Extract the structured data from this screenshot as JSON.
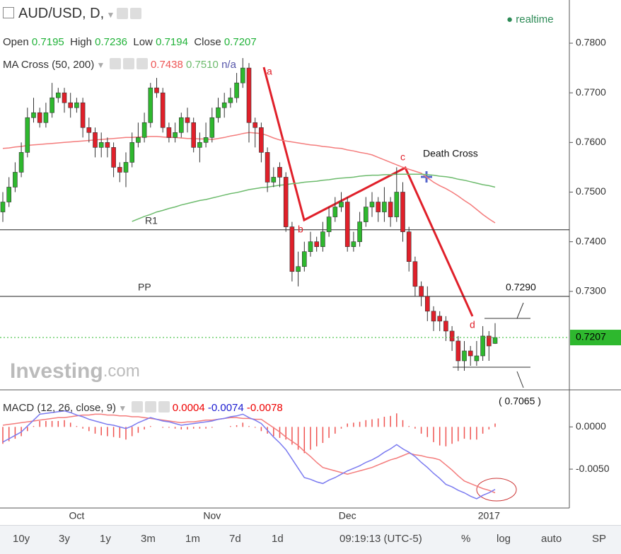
{
  "toolbar": {
    "symbol": "AUD/USD, D,",
    "status": "realtime"
  },
  "legend": {
    "ohlc": [
      {
        "label": "Open",
        "value": "0.7195"
      },
      {
        "label": "High",
        "value": "0.7236"
      },
      {
        "label": "Low",
        "value": "0.7194"
      },
      {
        "label": "Close",
        "value": "0.7207"
      }
    ],
    "ma_label": "MA Cross (50, 200)",
    "ma_values": [
      "0.7438",
      "0.7510",
      "n/a"
    ]
  },
  "watermark": [
    "Investing",
    ".com"
  ],
  "chart_data": [
    {
      "type": "candlestick",
      "categories": [
        null,
        null,
        null,
        null,
        null,
        null,
        null,
        null,
        null,
        null,
        null,
        null,
        "Oct",
        null,
        null,
        null,
        null,
        null,
        null,
        null,
        null,
        null,
        null,
        null,
        null,
        null,
        null,
        null,
        null,
        null,
        null,
        null,
        null,
        null,
        "Nov",
        null,
        null,
        null,
        null,
        null,
        null,
        null,
        null,
        null,
        null,
        null,
        null,
        null,
        null,
        null,
        null,
        null,
        null,
        null,
        null,
        null,
        "Dec",
        null,
        null,
        null,
        null,
        null,
        null,
        null,
        null,
        null,
        null,
        null,
        null,
        null,
        null,
        null,
        null,
        null,
        null,
        null,
        null,
        null,
        null,
        "2017",
        null
      ],
      "open": [
        0.746,
        0.748,
        0.751,
        0.754,
        0.758,
        0.765,
        0.766,
        0.764,
        0.766,
        0.769,
        0.77,
        0.768,
        0.767,
        0.768,
        0.763,
        0.762,
        0.759,
        0.76,
        0.759,
        0.755,
        0.754,
        0.756,
        0.76,
        0.761,
        0.764,
        0.771,
        0.77,
        0.763,
        0.761,
        0.762,
        0.765,
        0.764,
        0.759,
        0.76,
        0.761,
        0.765,
        0.767,
        0.768,
        0.769,
        0.772,
        0.775,
        0.764,
        0.763,
        0.758,
        0.752,
        0.755,
        0.753,
        0.743,
        0.734,
        0.735,
        0.738,
        0.74,
        0.739,
        0.742,
        0.745,
        0.747,
        0.748,
        0.739,
        0.74,
        0.744,
        0.747,
        0.748,
        0.746,
        0.748,
        0.745,
        0.75,
        0.742,
        0.736,
        0.731,
        0.729,
        0.726,
        0.725,
        0.724,
        0.722,
        0.72,
        0.716,
        0.718,
        0.716,
        0.717,
        0.721,
        0.7195
      ],
      "high": [
        0.75,
        0.753,
        0.756,
        0.76,
        0.767,
        0.769,
        0.767,
        0.768,
        0.772,
        0.771,
        0.771,
        0.77,
        0.769,
        0.769,
        0.765,
        0.763,
        0.762,
        0.761,
        0.76,
        0.756,
        0.758,
        0.762,
        0.764,
        0.766,
        0.772,
        0.773,
        0.771,
        0.764,
        0.764,
        0.766,
        0.767,
        0.765,
        0.762,
        0.764,
        0.767,
        0.769,
        0.77,
        0.771,
        0.774,
        0.777,
        0.776,
        0.765,
        0.764,
        0.759,
        0.755,
        0.756,
        0.754,
        0.744,
        0.738,
        0.74,
        0.742,
        0.741,
        0.744,
        0.747,
        0.749,
        0.75,
        0.749,
        0.742,
        0.746,
        0.749,
        0.75,
        0.749,
        0.751,
        0.749,
        0.755,
        0.752,
        0.743,
        0.737,
        0.732,
        0.731,
        0.727,
        0.726,
        0.725,
        0.723,
        0.721,
        0.72,
        0.719,
        0.72,
        0.723,
        0.722,
        0.7236
      ],
      "low": [
        0.744,
        0.747,
        0.75,
        0.753,
        0.757,
        0.764,
        0.763,
        0.763,
        0.765,
        0.768,
        0.766,
        0.765,
        0.766,
        0.761,
        0.76,
        0.757,
        0.757,
        0.757,
        0.753,
        0.752,
        0.751,
        0.755,
        0.759,
        0.76,
        0.763,
        0.769,
        0.762,
        0.76,
        0.76,
        0.761,
        0.762,
        0.758,
        0.756,
        0.759,
        0.76,
        0.764,
        0.765,
        0.767,
        0.768,
        0.771,
        0.76,
        0.759,
        0.756,
        0.75,
        0.751,
        0.751,
        0.742,
        0.732,
        0.731,
        0.734,
        0.737,
        0.738,
        0.738,
        0.741,
        0.744,
        0.746,
        0.738,
        0.738,
        0.739,
        0.743,
        0.745,
        0.744,
        0.744,
        0.743,
        0.744,
        0.74,
        0.734,
        0.729,
        0.727,
        0.724,
        0.722,
        0.722,
        0.72,
        0.718,
        0.714,
        0.714,
        0.715,
        0.715,
        0.716,
        0.716,
        0.7194
      ],
      "close": [
        0.748,
        0.751,
        0.754,
        0.758,
        0.765,
        0.766,
        0.764,
        0.766,
        0.769,
        0.77,
        0.768,
        0.767,
        0.768,
        0.763,
        0.762,
        0.759,
        0.76,
        0.759,
        0.755,
        0.754,
        0.756,
        0.76,
        0.761,
        0.764,
        0.771,
        0.77,
        0.763,
        0.761,
        0.762,
        0.765,
        0.764,
        0.759,
        0.76,
        0.761,
        0.765,
        0.767,
        0.768,
        0.769,
        0.772,
        0.775,
        0.764,
        0.763,
        0.758,
        0.752,
        0.753,
        0.753,
        0.743,
        0.734,
        0.735,
        0.738,
        0.74,
        0.739,
        0.742,
        0.745,
        0.747,
        0.748,
        0.739,
        0.74,
        0.744,
        0.747,
        0.748,
        0.746,
        0.748,
        0.745,
        0.75,
        0.742,
        0.736,
        0.731,
        0.729,
        0.726,
        0.724,
        0.724,
        0.722,
        0.72,
        0.716,
        0.718,
        0.717,
        0.717,
        0.721,
        0.719,
        0.7207
      ],
      "up_color": "#2eb82e",
      "down_color": "#e0202a",
      "ma_lines": [
        {
          "color": "#f47c7c",
          "values": [
            0.7588,
            0.7589,
            0.7591,
            0.7592,
            0.7594,
            0.7595,
            0.7596,
            0.7597,
            0.7598,
            0.7599,
            0.76,
            0.7601,
            0.7602,
            0.7603,
            0.7604,
            0.7605,
            0.7606,
            0.7607,
            0.7608,
            0.7609,
            0.761,
            0.761,
            0.7611,
            0.7611,
            0.7612,
            0.7612,
            0.7611,
            0.761,
            0.761,
            0.7609,
            0.7608,
            0.7608,
            0.7607,
            0.7607,
            0.7606,
            0.7608,
            0.761,
            0.7613,
            0.7615,
            0.7618,
            0.762,
            0.7619,
            0.7618,
            0.7614,
            0.7609,
            0.7605,
            0.7603,
            0.7601,
            0.7599,
            0.7597,
            0.7595,
            0.7594,
            0.7592,
            0.7591,
            0.7589,
            0.7588,
            0.7585,
            0.7583,
            0.758,
            0.7578,
            0.7575,
            0.757,
            0.7565,
            0.756,
            0.7555,
            0.755,
            0.7546,
            0.7542,
            0.7538,
            0.7529,
            0.752,
            0.7513,
            0.7507,
            0.75,
            0.7492,
            0.7483,
            0.7475,
            0.7465,
            0.7455,
            0.7446,
            0.7438
          ]
        },
        {
          "color": "#6dbb6d",
          "values": [
            null,
            null,
            null,
            null,
            null,
            null,
            null,
            null,
            null,
            null,
            null,
            null,
            null,
            null,
            null,
            null,
            null,
            null,
            null,
            null,
            null,
            0.7441,
            0.7446,
            0.7451,
            0.7455,
            0.746,
            0.7463,
            0.7467,
            0.747,
            0.7474,
            0.7477,
            0.748,
            0.7483,
            0.7485,
            0.7488,
            0.7491,
            0.7494,
            0.7497,
            0.7499,
            0.7502,
            0.7505,
            0.7507,
            0.7509,
            0.751,
            0.7512,
            0.7514,
            0.7515,
            0.7517,
            0.7518,
            0.752,
            0.7521,
            0.7522,
            0.7524,
            0.7525,
            0.7527,
            0.7528,
            0.7529,
            0.753,
            0.7532,
            0.7533,
            0.7534,
            0.7534,
            0.7535,
            0.7535,
            0.7536,
            0.7536,
            0.7536,
            0.7536,
            0.7536,
            0.7535,
            0.7534,
            0.7532,
            0.7531,
            0.7529,
            0.7526,
            0.7524,
            0.7521,
            0.7518,
            0.7515,
            0.7513,
            0.751
          ]
        }
      ],
      "levels": [
        {
          "label": "R1",
          "value": 0.7424
        },
        {
          "label": "PP",
          "value": 0.729
        }
      ],
      "annotations": [
        "a",
        "b",
        "c",
        "d",
        "Death Cross",
        "0.7290",
        "( 0.7065 )"
      ],
      "ylim": [
        0.7103,
        0.7887
      ],
      "yticks": [
        {
          "value": 0.73,
          "label": "0.7300"
        },
        {
          "value": 0.74,
          "label": "0.7400"
        },
        {
          "value": 0.75,
          "label": "0.7500"
        },
        {
          "value": 0.76,
          "label": "0.7600"
        },
        {
          "value": 0.77,
          "label": "0.7700"
        },
        {
          "value": 0.78,
          "label": "0.7800"
        }
      ]
    },
    {
      "type": "macd",
      "title": "MACD (12, 26, close, 9)",
      "histogram": {
        "color": "#ef5350",
        "values": [
          -0.002,
          -0.0017,
          -0.0014,
          -0.0011,
          -0.0005,
          0.0001,
          0.0007,
          0.0007,
          0.0007,
          0.0007,
          0.0008,
          0.0005,
          0.0001,
          -0.0002,
          -0.0005,
          -0.0008,
          -0.001,
          -0.0011,
          -0.0012,
          -0.0013,
          -0.0015,
          -0.0011,
          -0.0007,
          -0.0003,
          0.0001,
          0.0,
          -0.0001,
          -0.0001,
          -0.0002,
          -0.0003,
          -0.0003,
          -0.0002,
          -0.0002,
          -0.0002,
          -0.0001,
          0.0,
          0.0,
          0.0001,
          0.0002,
          0.0005,
          0.0001,
          -0.0001,
          -0.0005,
          -0.0008,
          -0.0011,
          -0.0013,
          -0.0015,
          -0.0021,
          -0.0027,
          -0.0031,
          -0.0027,
          -0.0023,
          -0.0019,
          -0.0013,
          -0.0008,
          -0.0002,
          0.0004,
          0.0005,
          0.0006,
          0.0008,
          0.0009,
          0.001,
          0.0012,
          0.0013,
          0.0016,
          0.0008,
          0.0001,
          -0.0002,
          -0.0008,
          -0.0012,
          -0.0018,
          -0.0022,
          -0.0023,
          -0.002,
          -0.0017,
          -0.0014,
          -0.0015,
          -0.0015,
          -0.0008,
          -0.0003,
          0.0004
        ]
      },
      "macd": {
        "color": "#7b7bf0",
        "values": [
          -0.0018,
          -0.0014,
          -0.001,
          -0.0006,
          0.0001,
          0.0008,
          0.0015,
          0.0016,
          0.0017,
          0.0018,
          0.0019,
          0.0017,
          0.0014,
          0.0012,
          0.0009,
          0.0007,
          0.0005,
          0.0003,
          0.0002,
          0.0,
          -0.0002,
          0.0001,
          0.0005,
          0.0008,
          0.0011,
          0.0009,
          0.0007,
          0.0006,
          0.0004,
          0.0002,
          0.0003,
          0.0004,
          0.0005,
          0.0006,
          0.0007,
          0.0009,
          0.001,
          0.0012,
          0.0013,
          0.0015,
          0.0011,
          0.0008,
          0.0004,
          -0.0004,
          -0.0012,
          -0.0019,
          -0.0027,
          -0.0038,
          -0.0049,
          -0.006,
          -0.0062,
          -0.0065,
          -0.0067,
          -0.0063,
          -0.006,
          -0.0056,
          -0.0052,
          -0.0049,
          -0.0046,
          -0.0042,
          -0.0039,
          -0.0035,
          -0.003,
          -0.0026,
          -0.0021,
          -0.0026,
          -0.003,
          -0.0035,
          -0.0042,
          -0.0048,
          -0.0055,
          -0.0061,
          -0.0068,
          -0.0071,
          -0.0075,
          -0.0078,
          -0.0082,
          -0.0085,
          -0.0081,
          -0.0078,
          -0.0074
        ]
      },
      "signal": {
        "color": "#f47c7c",
        "values": [
          0.0002,
          0.0003,
          0.0004,
          0.0005,
          0.0006,
          0.0007,
          0.0008,
          0.0009,
          0.001,
          0.0011,
          0.0011,
          0.0012,
          0.0013,
          0.0014,
          0.0014,
          0.0015,
          0.0015,
          0.0014,
          0.0014,
          0.0013,
          0.0013,
          0.0012,
          0.0012,
          0.0011,
          0.001,
          0.0009,
          0.0008,
          0.0007,
          0.0006,
          0.0005,
          0.0006,
          0.0006,
          0.0007,
          0.0008,
          0.0008,
          0.0009,
          0.001,
          0.0011,
          0.0011,
          0.001,
          0.001,
          0.0009,
          0.0009,
          0.0004,
          -0.0001,
          -0.0006,
          -0.0012,
          -0.0017,
          -0.0022,
          -0.0029,
          -0.0035,
          -0.0042,
          -0.0048,
          -0.005,
          -0.0052,
          -0.0054,
          -0.0056,
          -0.0054,
          -0.0052,
          -0.005,
          -0.0048,
          -0.0045,
          -0.0042,
          -0.0039,
          -0.0037,
          -0.0034,
          -0.0031,
          -0.0033,
          -0.0034,
          -0.0036,
          -0.0037,
          -0.0039,
          -0.0045,
          -0.0051,
          -0.0058,
          -0.0064,
          -0.0067,
          -0.007,
          -0.0073,
          -0.0075,
          -0.0078
        ]
      },
      "ylim": [
        -0.0096,
        0.0043
      ],
      "yticks": [
        {
          "value": 0,
          "label": "0.0000"
        },
        {
          "value": -0.005,
          "label": "-0.0050"
        }
      ]
    }
  ],
  "bottom_bar": {
    "ranges": [
      "10y",
      "3y",
      "1y",
      "3m",
      "1m",
      "7d",
      "1d"
    ],
    "time": "09:19:13 (UTC-5)",
    "options": [
      "%",
      "log",
      "auto",
      "SP"
    ]
  }
}
